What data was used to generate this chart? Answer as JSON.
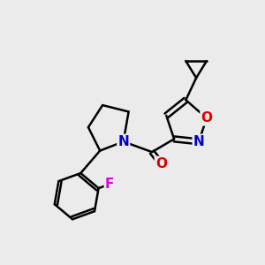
{
  "background_color": "#ebebeb",
  "bond_color": "#000000",
  "atom_colors": {
    "N": "#0000cc",
    "O": "#dd0000",
    "F": "#dd00dd",
    "C": "#000000"
  },
  "font_size": 10,
  "fig_size": [
    3.0,
    3.0
  ],
  "dpi": 100
}
